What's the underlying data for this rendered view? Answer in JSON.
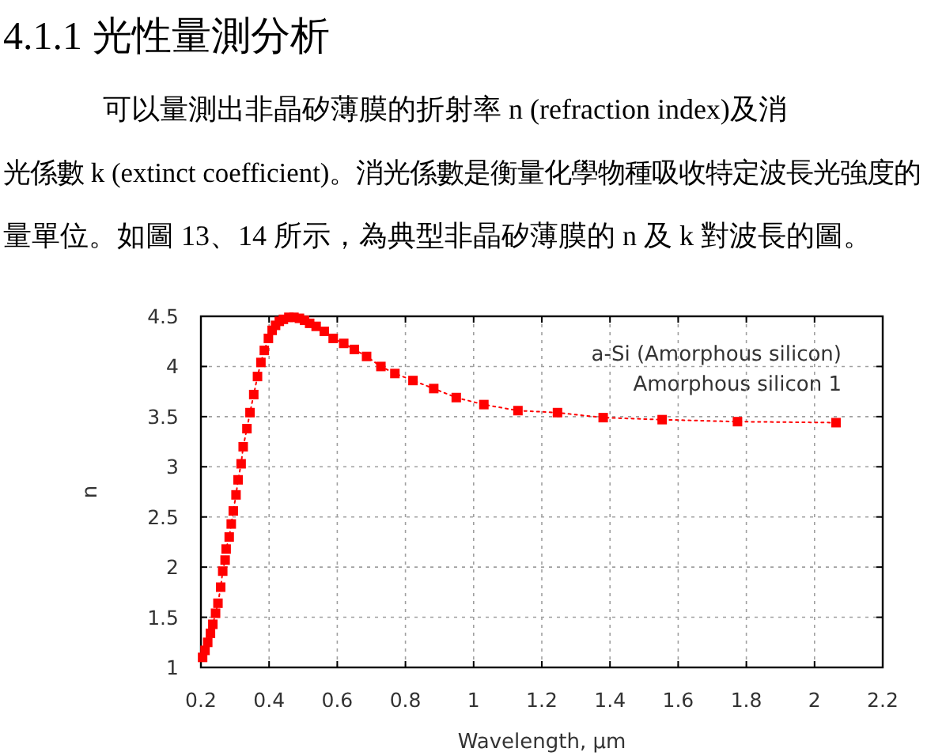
{
  "chart_data": {
    "type": "line",
    "title": "4.1.1 光性量測分析",
    "annotations": [
      "可以量測出非晶矽薄膜的折射率 n (refraction index)及消",
      "光係數 k (extinct coefficient)。消光係數是衡量化學物種吸收特定波長光強度的",
      "量單位。如圖 13、14 所示，為典型非晶矽薄膜的 n 及 k 對波長的圖。",
      "a-Si (Amorphous silicon)",
      "Amorphous silicon 1"
    ],
    "xlabel": "Wavelength, µm",
    "ylabel": "n",
    "color": "#ff0000",
    "marker": "square",
    "line_style": "dotted",
    "grid": true,
    "x": [
      0.205,
      0.212,
      0.22,
      0.228,
      0.235,
      0.243,
      0.25,
      0.258,
      0.264,
      0.271,
      0.274,
      0.283,
      0.289,
      0.295,
      0.303,
      0.309,
      0.318,
      0.324,
      0.335,
      0.344,
      0.355,
      0.366,
      0.376,
      0.386,
      0.398,
      0.409,
      0.419,
      0.43,
      0.442,
      0.458,
      0.473,
      0.489,
      0.504,
      0.519,
      0.538,
      0.562,
      0.588,
      0.619,
      0.65,
      0.686,
      0.728,
      0.769,
      0.822,
      0.883,
      0.949,
      1.03,
      1.13,
      1.246,
      1.38,
      1.553,
      1.774,
      2.063
    ],
    "values": [
      1.1,
      1.17,
      1.25,
      1.34,
      1.43,
      1.54,
      1.64,
      1.8,
      1.96,
      2.07,
      2.18,
      2.3,
      2.43,
      2.56,
      2.72,
      2.87,
      3.03,
      3.2,
      3.38,
      3.54,
      3.72,
      3.9,
      4.04,
      4.16,
      4.28,
      4.36,
      4.41,
      4.45,
      4.47,
      4.49,
      4.49,
      4.48,
      4.46,
      4.43,
      4.4,
      4.35,
      4.28,
      4.23,
      4.17,
      4.1,
      4.0,
      3.93,
      3.86,
      3.78,
      3.69,
      3.62,
      3.56,
      3.54,
      3.49,
      3.47,
      3.45,
      3.44
    ],
    "xlim": [
      0.2,
      2.2
    ],
    "ylim": [
      1,
      4.5
    ],
    "xticks": [
      0.2,
      0.4,
      0.6,
      0.8,
      1,
      1.2,
      1.4,
      1.6,
      1.8,
      2,
      2.2
    ],
    "yticks": [
      1,
      1.5,
      2,
      2.5,
      3,
      3.5,
      4,
      4.5
    ]
  }
}
